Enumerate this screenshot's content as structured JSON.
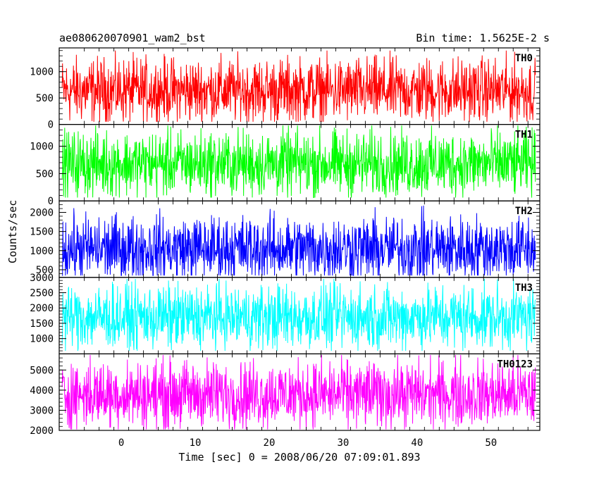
{
  "header": {
    "title": "ae080620070901_wam2_bst",
    "bin_time": "Bin time: 1.5625E-2 s"
  },
  "chart_data": {
    "type": "line",
    "xlabel": "Time [sec] 0 = 2008/06/20 07:09:01.893",
    "ylabel": "Counts/sec",
    "xlim": [
      -8.4,
      56.6
    ],
    "x_data_range": [
      -8.0,
      56.0
    ],
    "x_ticks": [
      "0",
      "10",
      "20",
      "30",
      "40",
      "50"
    ],
    "grid": false,
    "panels": [
      {
        "name": "TH0",
        "color": "#ff0000",
        "ylim": [
          0,
          1450
        ],
        "y_ticks": [
          "0",
          "500",
          "1000"
        ],
        "mean": 640,
        "min": 50,
        "max": 1400
      },
      {
        "name": "TH1",
        "color": "#00ff00",
        "ylim": [
          0,
          1400
        ],
        "y_ticks": [
          "0",
          "500",
          "1000"
        ],
        "mean": 680,
        "min": 60,
        "max": 1380
      },
      {
        "name": "TH2",
        "color": "#0000ff",
        "ylim": [
          300,
          2300
        ],
        "y_ticks": [
          "500",
          "1000",
          "1500",
          "2000"
        ],
        "mean": 1050,
        "min": 350,
        "max": 2250
      },
      {
        "name": "TH3",
        "color": "#00ffff",
        "ylim": [
          500,
          3000
        ],
        "y_ticks": [
          "1000",
          "1500",
          "2000",
          "2500",
          "3000"
        ],
        "mean": 1700,
        "min": 600,
        "max": 2950
      },
      {
        "name": "TH0123",
        "color": "#ff00ff",
        "ylim": [
          2000,
          5800
        ],
        "y_ticks": [
          "2000",
          "3000",
          "4000",
          "5000"
        ],
        "mean": 3800,
        "min": 2050,
        "max": 5750
      }
    ]
  }
}
